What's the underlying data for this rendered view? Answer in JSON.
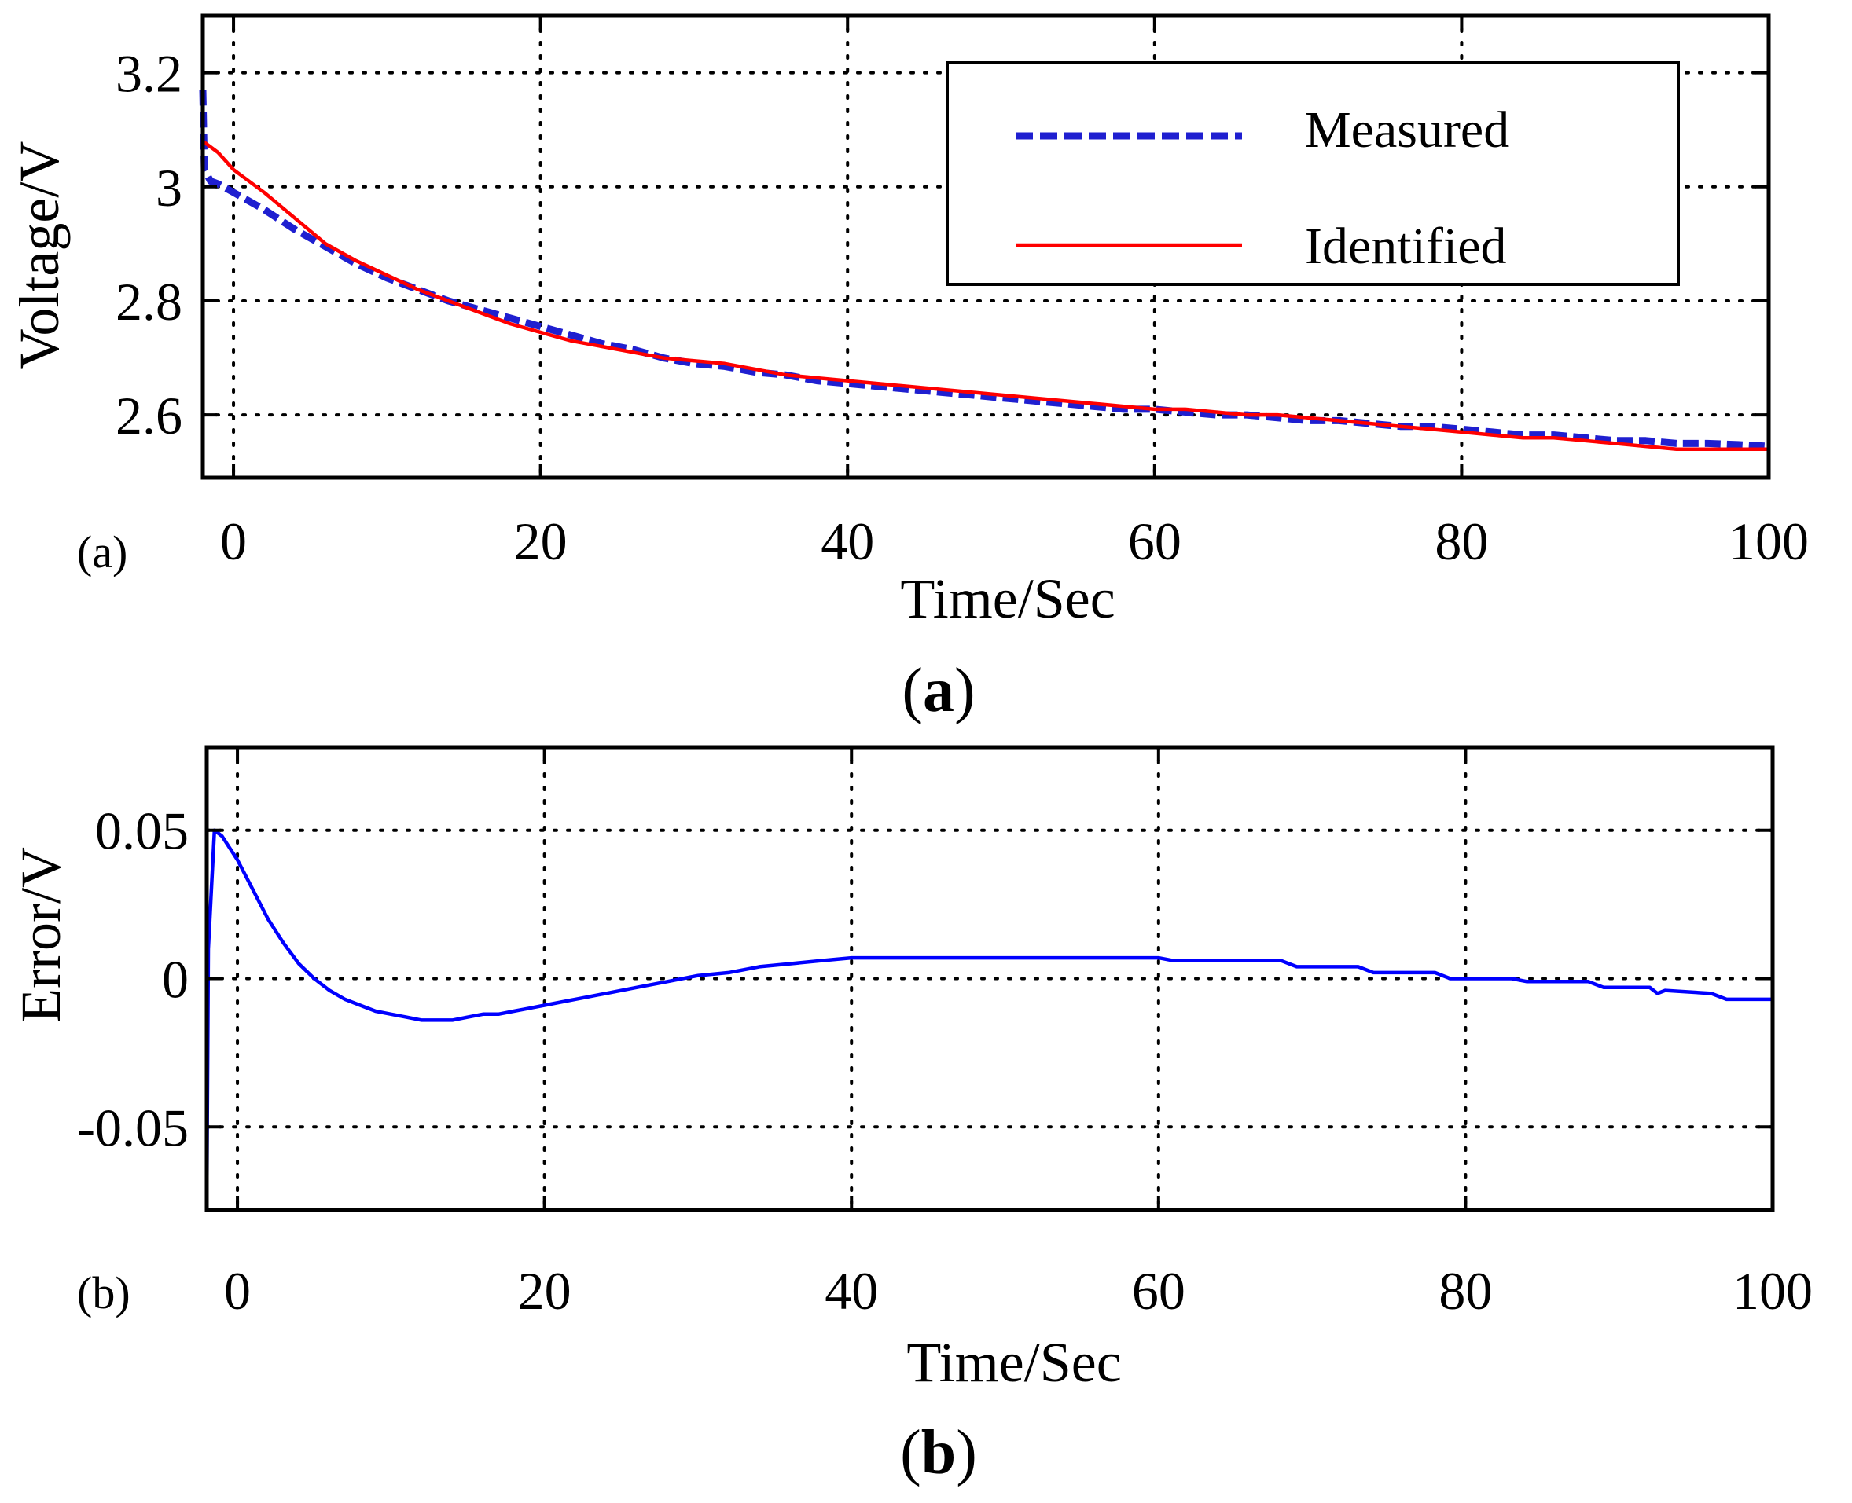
{
  "chart_data": [
    {
      "id": "a",
      "type": "line",
      "panel_tag": "(a)",
      "caption_letter": "a",
      "caption_open": "(",
      "caption_close": ")",
      "xlabel": "Time/Sec",
      "ylabel": "Voltage/V",
      "xlim": [
        -2,
        100
      ],
      "ylim": [
        2.49,
        3.3
      ],
      "xticks": [
        0,
        20,
        40,
        60,
        80,
        100
      ],
      "xtick_labels": [
        "0",
        "20",
        "40",
        "60",
        "80",
        "100"
      ],
      "yticks": [
        2.6,
        2.8,
        3,
        3.2
      ],
      "ytick_labels": [
        "2.6",
        "2.8",
        "3",
        "3.2"
      ],
      "grid": true,
      "legend_position": "top-right",
      "series": [
        {
          "name": "Measured",
          "color": "#1f1fd0",
          "style": "dashed",
          "x": [
            -2,
            -1.9,
            -1.5,
            -1,
            0,
            2,
            4,
            6,
            8,
            10,
            12,
            14,
            16,
            18,
            20,
            22,
            24,
            26,
            28,
            30,
            32,
            34,
            36,
            38,
            40,
            42,
            44,
            46,
            48,
            50,
            52,
            54,
            56,
            58,
            60,
            62,
            64,
            66,
            68,
            70,
            72,
            74,
            76,
            78,
            80,
            82,
            84,
            86,
            88,
            90,
            92,
            94,
            96,
            98,
            100
          ],
          "y": [
            3.17,
            3.03,
            3.01,
            3.005,
            2.99,
            2.96,
            2.925,
            2.895,
            2.865,
            2.84,
            2.82,
            2.8,
            2.785,
            2.77,
            2.755,
            2.74,
            2.725,
            2.715,
            2.7,
            2.69,
            2.685,
            2.675,
            2.67,
            2.66,
            2.655,
            2.65,
            2.645,
            2.64,
            2.635,
            2.63,
            2.625,
            2.62,
            2.615,
            2.61,
            2.61,
            2.605,
            2.6,
            2.6,
            2.595,
            2.59,
            2.59,
            2.585,
            2.58,
            2.58,
            2.575,
            2.57,
            2.565,
            2.565,
            2.56,
            2.555,
            2.555,
            2.55,
            2.55,
            2.548,
            2.545
          ]
        },
        {
          "name": "Identified",
          "color": "#ff0000",
          "style": "solid",
          "x": [
            -2,
            -1,
            0,
            2,
            4,
            6,
            8,
            10,
            12,
            14,
            16,
            18,
            20,
            22,
            24,
            26,
            28,
            30,
            32,
            34,
            36,
            38,
            40,
            42,
            44,
            46,
            48,
            50,
            52,
            54,
            56,
            58,
            60,
            62,
            64,
            66,
            68,
            70,
            72,
            74,
            76,
            78,
            80,
            82,
            84,
            86,
            88,
            90,
            92,
            94,
            96,
            98,
            100
          ],
          "y": [
            3.08,
            3.06,
            3.03,
            2.99,
            2.945,
            2.9,
            2.87,
            2.845,
            2.82,
            2.8,
            2.78,
            2.76,
            2.745,
            2.73,
            2.72,
            2.71,
            2.7,
            2.695,
            2.69,
            2.68,
            2.67,
            2.665,
            2.66,
            2.655,
            2.65,
            2.645,
            2.64,
            2.635,
            2.63,
            2.625,
            2.62,
            2.615,
            2.61,
            2.61,
            2.605,
            2.6,
            2.6,
            2.595,
            2.59,
            2.585,
            2.58,
            2.575,
            2.57,
            2.565,
            2.56,
            2.56,
            2.555,
            2.55,
            2.545,
            2.54,
            2.54,
            2.54,
            2.54
          ]
        }
      ]
    },
    {
      "id": "b",
      "type": "line",
      "panel_tag": "(b)",
      "caption_letter": "b",
      "caption_open": "(",
      "caption_close": ")",
      "xlabel": "Time/Sec",
      "ylabel": "Error/V",
      "xlim": [
        -2,
        100
      ],
      "ylim": [
        -0.078,
        0.078
      ],
      "xticks": [
        0,
        20,
        40,
        60,
        80,
        100
      ],
      "xtick_labels": [
        "0",
        "20",
        "40",
        "60",
        "80",
        "100"
      ],
      "yticks": [
        -0.05,
        0,
        0.05
      ],
      "ytick_labels": [
        "-0.05",
        "0",
        "0.05"
      ],
      "grid": true,
      "legend_position": "none",
      "series": [
        {
          "name": "Error",
          "color": "#0000ff",
          "style": "solid",
          "x": [
            -2,
            -1.9,
            -1.5,
            -1,
            0,
            1,
            2,
            3,
            4,
            5,
            6,
            7,
            8,
            9,
            10,
            11,
            12,
            13,
            14,
            15,
            16,
            17,
            18,
            19,
            20,
            22,
            24,
            26,
            28,
            30,
            32,
            34,
            36,
            38,
            40,
            45,
            50,
            55,
            60,
            61,
            65,
            68,
            69,
            73,
            74,
            78,
            79,
            83,
            84,
            88,
            89,
            92,
            92.5,
            93,
            96,
            97,
            100
          ],
          "y": [
            -0.078,
            0.01,
            0.05,
            0.048,
            0.04,
            0.03,
            0.02,
            0.012,
            0.005,
            0,
            -0.004,
            -0.007,
            -0.009,
            -0.011,
            -0.012,
            -0.013,
            -0.014,
            -0.014,
            -0.014,
            -0.013,
            -0.012,
            -0.012,
            -0.011,
            -0.01,
            -0.009,
            -0.007,
            -0.005,
            -0.003,
            -0.001,
            0.001,
            0.002,
            0.004,
            0.005,
            0.006,
            0.007,
            0.007,
            0.007,
            0.007,
            0.007,
            0.006,
            0.006,
            0.006,
            0.004,
            0.004,
            0.002,
            0.002,
            0,
            0,
            -0.001,
            -0.001,
            -0.003,
            -0.003,
            -0.005,
            -0.004,
            -0.005,
            -0.007,
            -0.007
          ]
        }
      ]
    }
  ]
}
